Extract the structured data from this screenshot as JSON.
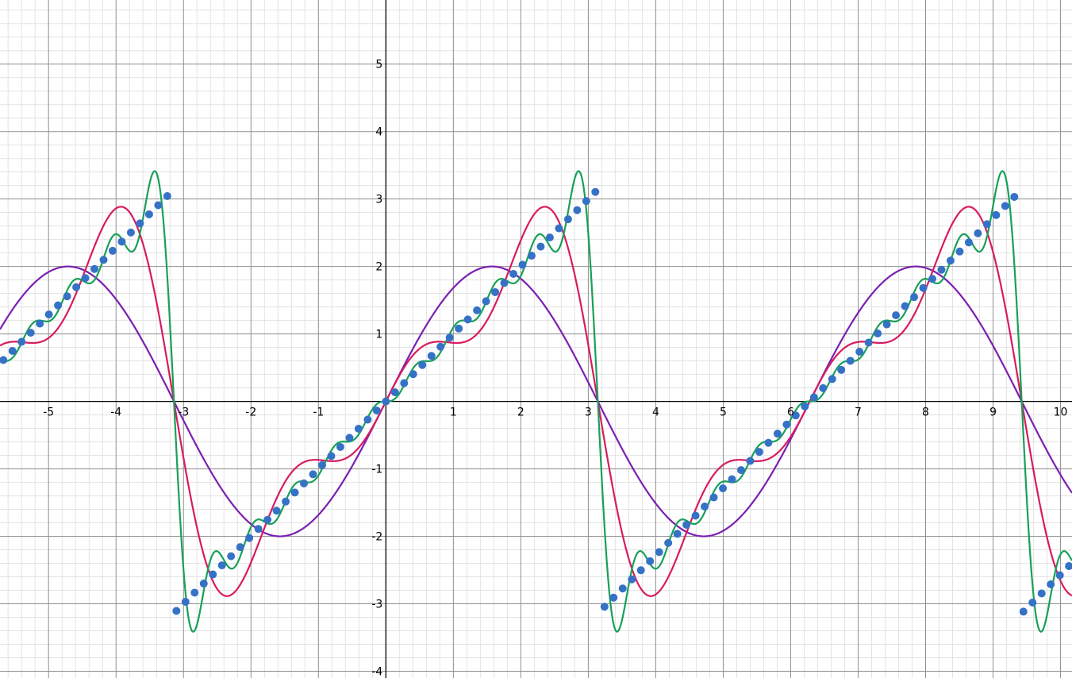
{
  "chart_data": {
    "type": "line",
    "title": "",
    "xlabel": "",
    "ylabel": "",
    "xlim": [
      -5.72,
      10.17
    ],
    "ylim": [
      -4.1,
      5.95
    ],
    "grid": true,
    "x_ticks": [
      "-5",
      "-4",
      "-3",
      "-2",
      "-1",
      "1",
      "2",
      "3",
      "4",
      "5",
      "6",
      "7",
      "8",
      "9",
      "10"
    ],
    "x_tick_values": [
      -5,
      -4,
      -3,
      -2,
      -1,
      1,
      2,
      3,
      4,
      5,
      6,
      7,
      8,
      9,
      10
    ],
    "y_ticks": [
      "5",
      "4",
      "3",
      "2",
      "1",
      "-1",
      "-2",
      "-3",
      "-4"
    ],
    "y_tick_values": [
      5,
      4,
      3,
      2,
      1,
      -1,
      -2,
      -3,
      -4
    ],
    "series": [
      {
        "formula": "2*sin(x)",
        "terms": 1,
        "color": "#7b1fb0"
      },
      {
        "formula": "2*(sin(x) - sin(2x)/2 + sin(3x)/3)",
        "terms": 3,
        "color": "#d81b60"
      },
      {
        "formula": "2*sum_{k=1..10} (-1)^(k+1) sin(kx)/k",
        "terms": 10,
        "color": "#18a058"
      },
      {
        "formula": "sawtooth: x - 2*pi*round(x/(2*pi)), sampled every 0.135",
        "points": "sampled",
        "color": "#3572c6"
      }
    ]
  }
}
